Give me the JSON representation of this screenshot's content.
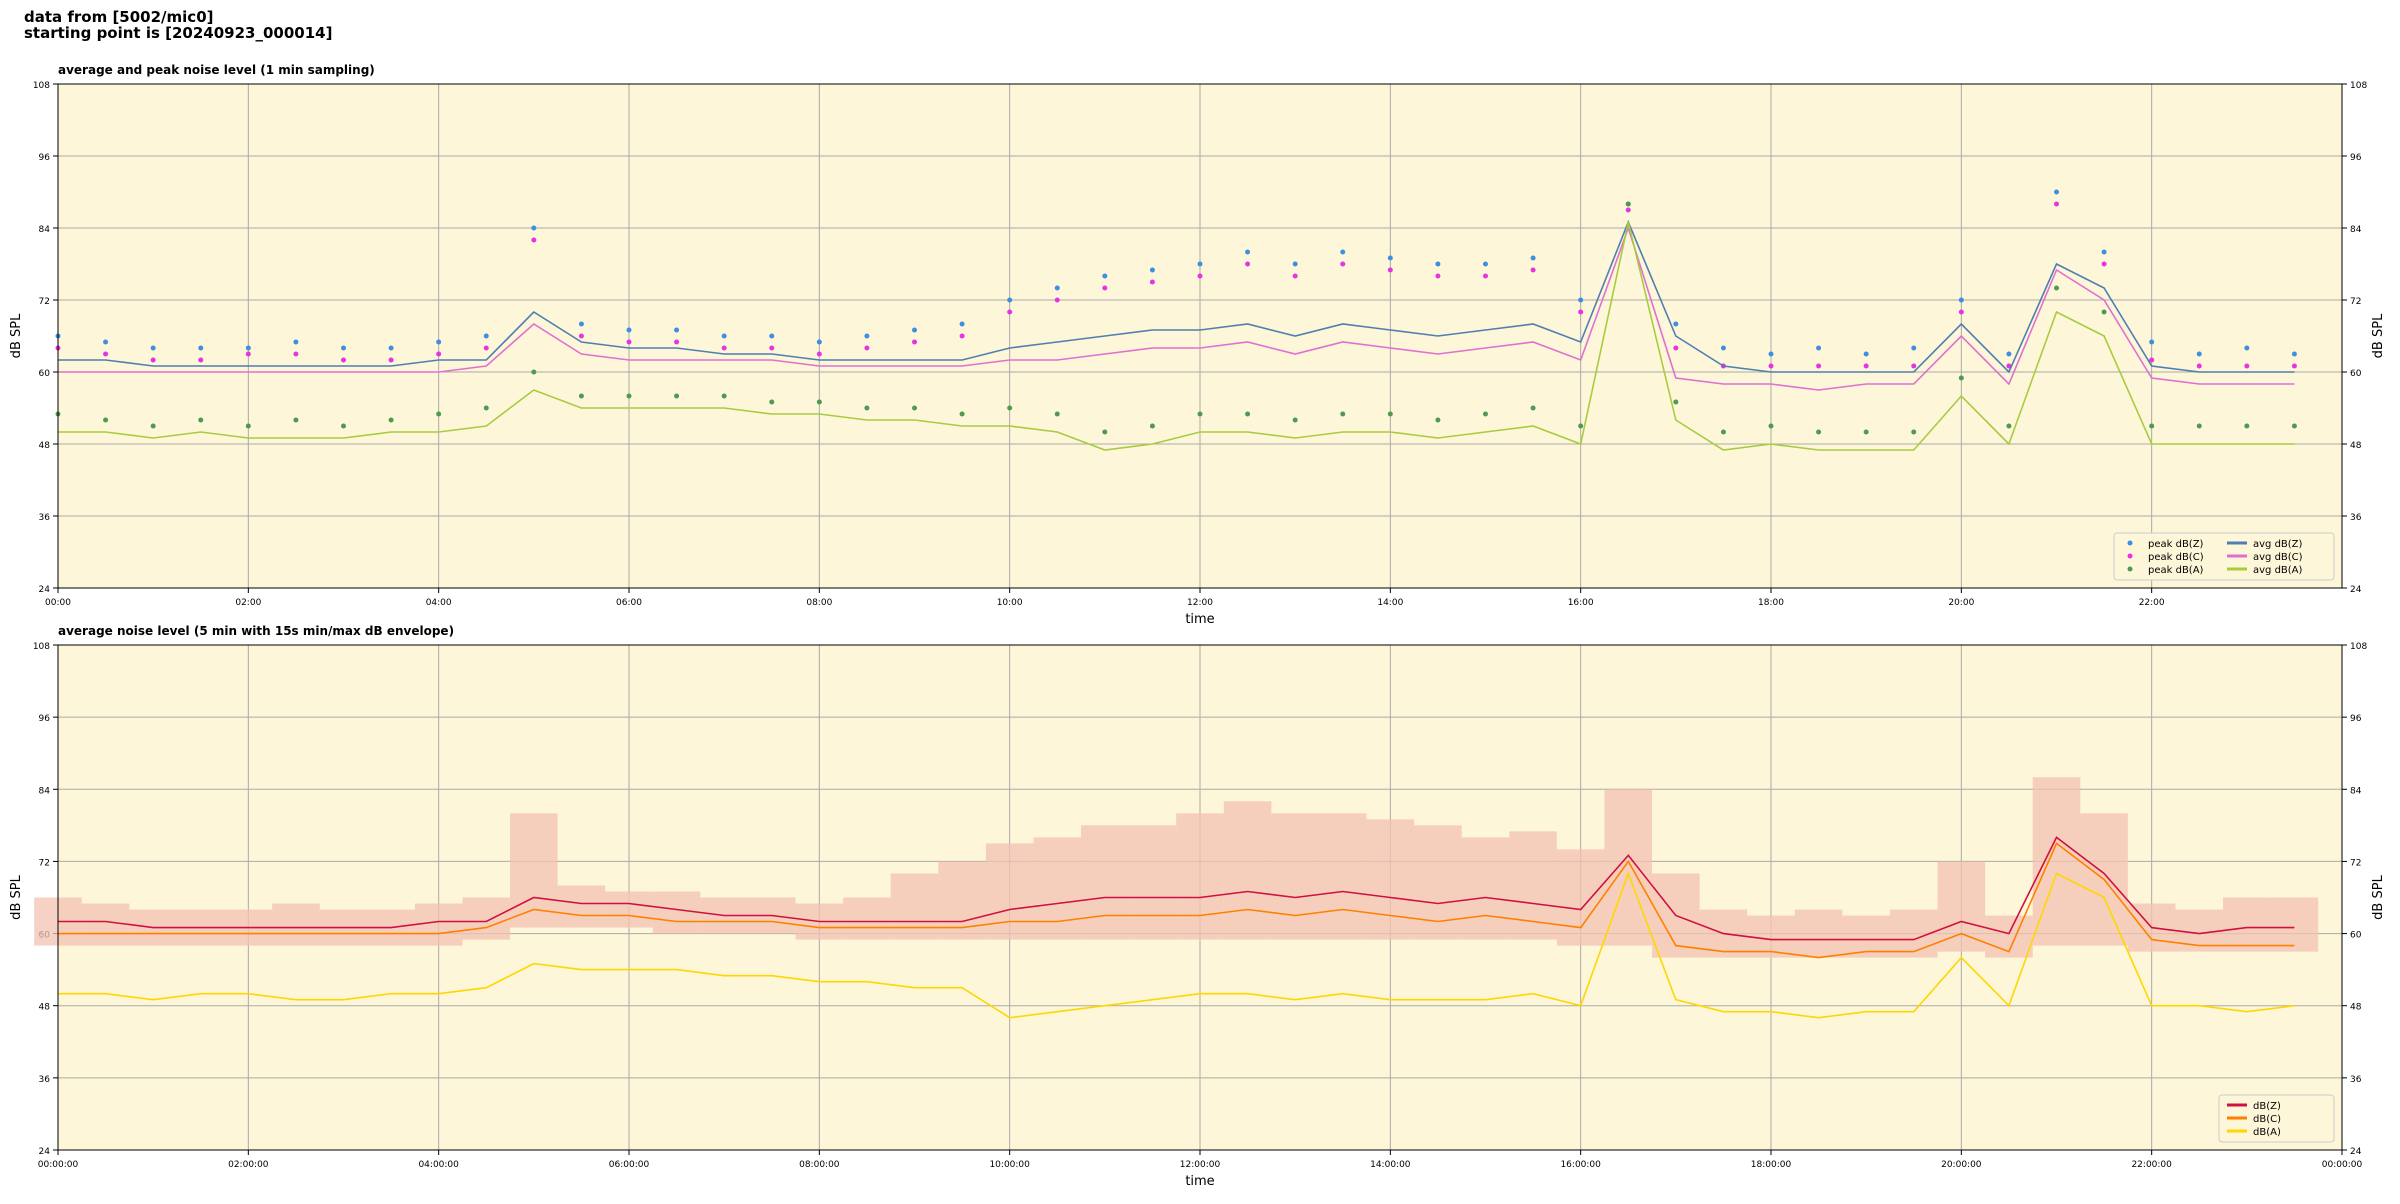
{
  "header": {
    "lines": [
      "data from [5002/mic0]",
      "starting point is [20240923_000014]"
    ]
  },
  "chart_data": [
    {
      "type": "line",
      "title": "average and peak noise level (1 min sampling)",
      "xlabel": "time",
      "ylabel": "dB SPL",
      "x": [
        0,
        0.5,
        1,
        1.5,
        2,
        2.5,
        3,
        3.5,
        4,
        4.5,
        5,
        5.5,
        6,
        6.5,
        7,
        7.5,
        8,
        8.5,
        9,
        9.5,
        10,
        10.5,
        11,
        11.5,
        12,
        12.5,
        13,
        13.5,
        14,
        14.5,
        15,
        15.5,
        16,
        16.5,
        17,
        17.5,
        18,
        18.5,
        19,
        19.5,
        20,
        20.5,
        21,
        21.5,
        22,
        22.5,
        23,
        23.5
      ],
      "xlim": [
        0,
        24
      ],
      "xticks": [
        {
          "value": 0,
          "label": "00:00"
        },
        {
          "value": 2,
          "label": "02:00"
        },
        {
          "value": 4,
          "label": "04:00"
        },
        {
          "value": 6,
          "label": "06:00"
        },
        {
          "value": 8,
          "label": "08:00"
        },
        {
          "value": 10,
          "label": "10:00"
        },
        {
          "value": 12,
          "label": "12:00"
        },
        {
          "value": 14,
          "label": "14:00"
        },
        {
          "value": 16,
          "label": "16:00"
        },
        {
          "value": 18,
          "label": "18:00"
        },
        {
          "value": 20,
          "label": "20:00"
        },
        {
          "value": 22,
          "label": "22:00"
        }
      ],
      "ylim": [
        24,
        108
      ],
      "yticks": [
        24,
        36,
        48,
        60,
        72,
        84,
        96,
        108
      ],
      "grid": true,
      "legend": "lower right",
      "legend_ncol": 2,
      "series": [
        {
          "name": "peak dB(Z)",
          "style": "scatter",
          "color": "#3d8fe0",
          "values": [
            66,
            65,
            64,
            64,
            64,
            65,
            64,
            64,
            65,
            66,
            84,
            68,
            67,
            67,
            66,
            66,
            65,
            66,
            67,
            68,
            72,
            74,
            76,
            77,
            78,
            80,
            78,
            80,
            79,
            78,
            78,
            79,
            72,
            88,
            68,
            64,
            63,
            64,
            63,
            64,
            72,
            63,
            90,
            80,
            65,
            63,
            64,
            63
          ]
        },
        {
          "name": "peak dB(C)",
          "style": "scatter",
          "color": "#e535e0",
          "values": [
            64,
            63,
            62,
            62,
            63,
            63,
            62,
            62,
            63,
            64,
            82,
            66,
            65,
            65,
            64,
            64,
            63,
            64,
            65,
            66,
            70,
            72,
            74,
            75,
            76,
            78,
            76,
            78,
            77,
            76,
            76,
            77,
            70,
            87,
            64,
            61,
            61,
            61,
            61,
            61,
            70,
            61,
            88,
            78,
            62,
            61,
            61,
            61
          ]
        },
        {
          "name": "peak dB(A)",
          "style": "scatter",
          "color": "#4e9a52",
          "values": [
            53,
            52,
            51,
            52,
            51,
            52,
            51,
            52,
            53,
            54,
            60,
            56,
            56,
            56,
            56,
            55,
            55,
            54,
            54,
            53,
            54,
            53,
            50,
            51,
            53,
            53,
            52,
            53,
            53,
            52,
            53,
            54,
            51,
            88,
            55,
            50,
            51,
            50,
            50,
            50,
            59,
            51,
            74,
            70,
            51,
            51,
            51,
            51
          ]
        },
        {
          "name": "avg dB(Z)",
          "style": "line",
          "color": "#4f7fb0",
          "values": [
            62,
            62,
            61,
            61,
            61,
            61,
            61,
            61,
            62,
            62,
            70,
            65,
            64,
            64,
            63,
            63,
            62,
            62,
            62,
            62,
            64,
            65,
            66,
            67,
            67,
            68,
            66,
            68,
            67,
            66,
            67,
            68,
            65,
            85,
            66,
            61,
            60,
            60,
            60,
            60,
            68,
            60,
            78,
            74,
            61,
            60,
            60,
            60
          ]
        },
        {
          "name": "avg dB(C)",
          "style": "line",
          "color": "#e070d0",
          "values": [
            60,
            60,
            60,
            60,
            60,
            60,
            60,
            60,
            60,
            61,
            68,
            63,
            62,
            62,
            62,
            62,
            61,
            61,
            61,
            61,
            62,
            62,
            63,
            64,
            64,
            65,
            63,
            65,
            64,
            63,
            64,
            65,
            62,
            84,
            59,
            58,
            58,
            57,
            58,
            58,
            66,
            58,
            77,
            72,
            59,
            58,
            58,
            58
          ]
        },
        {
          "name": "avg dB(A)",
          "style": "line",
          "color": "#a8cc40",
          "values": [
            50,
            50,
            49,
            50,
            49,
            49,
            49,
            50,
            50,
            51,
            57,
            54,
            54,
            54,
            54,
            53,
            53,
            52,
            52,
            51,
            51,
            50,
            47,
            48,
            50,
            50,
            49,
            50,
            50,
            49,
            50,
            51,
            48,
            85,
            52,
            47,
            48,
            47,
            47,
            47,
            56,
            48,
            70,
            66,
            48,
            48,
            48,
            48
          ]
        }
      ]
    },
    {
      "type": "line",
      "title": "average noise level (5 min with 15s min/max dB envelope)",
      "xlabel": "time",
      "ylabel": "dB SPL",
      "x": [
        0,
        0.5,
        1,
        1.5,
        2,
        2.5,
        3,
        3.5,
        4,
        4.5,
        5,
        5.5,
        6,
        6.5,
        7,
        7.5,
        8,
        8.5,
        9,
        9.5,
        10,
        10.5,
        11,
        11.5,
        12,
        12.5,
        13,
        13.5,
        14,
        14.5,
        15,
        15.5,
        16,
        16.5,
        17,
        17.5,
        18,
        18.5,
        19,
        19.5,
        20,
        20.5,
        21,
        21.5,
        22,
        22.5,
        23,
        23.5
      ],
      "xlim": [
        0,
        24
      ],
      "xticks": [
        {
          "value": 0,
          "label": "00:00:00"
        },
        {
          "value": 2,
          "label": "02:00:00"
        },
        {
          "value": 4,
          "label": "04:00:00"
        },
        {
          "value": 6,
          "label": "06:00:00"
        },
        {
          "value": 8,
          "label": "08:00:00"
        },
        {
          "value": 10,
          "label": "10:00:00"
        },
        {
          "value": 12,
          "label": "12:00:00"
        },
        {
          "value": 14,
          "label": "14:00:00"
        },
        {
          "value": 16,
          "label": "16:00:00"
        },
        {
          "value": 18,
          "label": "18:00:00"
        },
        {
          "value": 20,
          "label": "20:00:00"
        },
        {
          "value": 22,
          "label": "22:00:00"
        },
        {
          "value": 24,
          "label": "00:00:00"
        }
      ],
      "ylim": [
        24,
        108
      ],
      "yticks": [
        24,
        36,
        48,
        60,
        72,
        84,
        96,
        108
      ],
      "grid": true,
      "legend": "lower right",
      "legend_ncol": 1,
      "envelope": {
        "color": "#f3c2b2",
        "lower": [
          58,
          58,
          58,
          58,
          58,
          58,
          58,
          58,
          58,
          59,
          61,
          61,
          61,
          60,
          60,
          60,
          59,
          59,
          59,
          59,
          59,
          59,
          59,
          59,
          59,
          59,
          59,
          59,
          59,
          59,
          59,
          59,
          58,
          58,
          56,
          56,
          56,
          56,
          56,
          56,
          57,
          56,
          58,
          58,
          57,
          57,
          57,
          57
        ],
        "upper": [
          66,
          65,
          64,
          64,
          64,
          65,
          64,
          64,
          65,
          66,
          80,
          68,
          67,
          67,
          66,
          66,
          65,
          66,
          70,
          72,
          75,
          76,
          78,
          78,
          80,
          82,
          80,
          80,
          79,
          78,
          76,
          77,
          74,
          84,
          70,
          64,
          63,
          64,
          63,
          64,
          72,
          63,
          86,
          80,
          65,
          64,
          66,
          66
        ]
      },
      "series": [
        {
          "name": "dB(Z)",
          "style": "line",
          "color": "#d01040",
          "values": [
            62,
            62,
            61,
            61,
            61,
            61,
            61,
            61,
            62,
            62,
            66,
            65,
            65,
            64,
            63,
            63,
            62,
            62,
            62,
            62,
            64,
            65,
            66,
            66,
            66,
            67,
            66,
            67,
            66,
            65,
            66,
            65,
            64,
            73,
            63,
            60,
            59,
            59,
            59,
            59,
            62,
            60,
            76,
            70,
            61,
            60,
            61,
            61
          ]
        },
        {
          "name": "dB(C)",
          "style": "line",
          "color": "#ff8000",
          "values": [
            60,
            60,
            60,
            60,
            60,
            60,
            60,
            60,
            60,
            61,
            64,
            63,
            63,
            62,
            62,
            62,
            61,
            61,
            61,
            61,
            62,
            62,
            63,
            63,
            63,
            64,
            63,
            64,
            63,
            62,
            63,
            62,
            61,
            72,
            58,
            57,
            57,
            56,
            57,
            57,
            60,
            57,
            75,
            69,
            59,
            58,
            58,
            58
          ]
        },
        {
          "name": "dB(A)",
          "style": "line",
          "color": "#ffd700",
          "values": [
            50,
            50,
            49,
            50,
            50,
            49,
            49,
            50,
            50,
            51,
            55,
            54,
            54,
            54,
            53,
            53,
            52,
            52,
            51,
            51,
            46,
            47,
            48,
            49,
            50,
            50,
            49,
            50,
            49,
            49,
            49,
            50,
            48,
            70,
            49,
            47,
            47,
            46,
            47,
            47,
            56,
            48,
            70,
            66,
            48,
            48,
            47,
            48
          ]
        }
      ]
    }
  ]
}
